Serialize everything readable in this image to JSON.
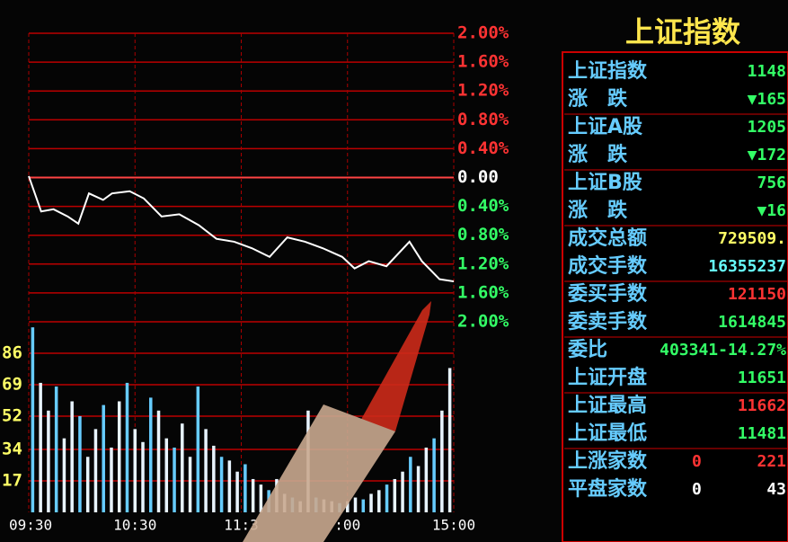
{
  "chart_data": {
    "type": "line",
    "xlim": [
      0,
      240
    ],
    "xticks": [
      {
        "value": 0,
        "label": "09:30"
      },
      {
        "value": 60,
        "label": "10:30"
      },
      {
        "value": 120,
        "label": "11:3"
      },
      {
        "value": 180,
        "label": ":00"
      },
      {
        "value": 240,
        "label": "15:00"
      }
    ],
    "ylim": [
      -2,
      2
    ],
    "yticks": [
      {
        "value": 2,
        "label": "2.00%"
      },
      {
        "value": 1.6,
        "label": "1.60%"
      },
      {
        "value": 1.2,
        "label": "1.20%"
      },
      {
        "value": 0.8,
        "label": "0.80%"
      },
      {
        "value": 0.4,
        "label": "0.40%"
      },
      {
        "value": 0,
        "label": "0.00"
      },
      {
        "value": -0.4,
        "label": "0.40%"
      },
      {
        "value": -0.8,
        "label": "0.80%"
      },
      {
        "value": -1.2,
        "label": "1.20%"
      },
      {
        "value": -1.6,
        "label": "1.60%"
      },
      {
        "value": -2,
        "label": "2.00%"
      }
    ],
    "grid": true,
    "series": [
      {
        "color": "#ffffff",
        "x": [
          0,
          7,
          14,
          22,
          28,
          34,
          42,
          47,
          57,
          65,
          75,
          85,
          96,
          106,
          116,
          126,
          136,
          146,
          156,
          166,
          177,
          184,
          192,
          202,
          215,
          222,
          232,
          240
        ],
        "values": [
          0.02,
          -0.47,
          -0.44,
          -0.54,
          -0.64,
          -0.22,
          -0.31,
          -0.22,
          -0.19,
          -0.29,
          -0.54,
          -0.51,
          -0.66,
          -0.85,
          -0.89,
          -0.98,
          -1.1,
          -0.83,
          -0.89,
          -0.98,
          -1.1,
          -1.26,
          -1.16,
          -1.23,
          -0.89,
          -1.16,
          -1.41,
          -1.44
        ]
      }
    ],
    "volume": {
      "color": "#e8f4ff",
      "ylim": [
        0,
        103
      ],
      "yticks": [
        17,
        34,
        52,
        69,
        86
      ],
      "values": [
        100,
        70,
        55,
        68,
        40,
        60,
        52,
        30,
        45,
        58,
        35,
        60,
        70,
        45,
        38,
        62,
        55,
        40,
        35,
        48,
        30,
        68,
        45,
        36,
        30,
        28,
        22,
        26,
        18,
        15,
        12,
        18,
        10,
        8,
        6,
        55,
        8,
        7,
        6,
        5,
        6,
        8,
        7,
        10,
        12,
        15,
        18,
        22,
        30,
        25,
        35,
        40,
        55,
        78
      ]
    }
  },
  "panel": {
    "title": "上证指数",
    "rows": [
      {
        "label": "上证指数",
        "values": [
          "1148"
        ],
        "color": "#33ff66"
      },
      {
        "label": "涨　跌",
        "values": [
          "▼165"
        ],
        "color": "#33ff66"
      },
      {
        "label": "上证A股",
        "values": [
          "1205"
        ],
        "color": "#33ff66"
      },
      {
        "label": "涨　跌",
        "values": [
          "▼172"
        ],
        "color": "#33ff66"
      },
      {
        "label": "上证B股",
        "values": [
          "756"
        ],
        "color": "#33ff66"
      },
      {
        "label": "涨　跌",
        "values": [
          "▼16"
        ],
        "color": "#33ff66"
      },
      {
        "label": "成交总额",
        "values": [
          "729509."
        ],
        "color": "#ffff66"
      },
      {
        "label": "成交手数",
        "values": [
          "16355237"
        ],
        "color": "#66ffff"
      },
      {
        "label": "委买手数",
        "values": [
          "121150"
        ],
        "color": "#ff3333"
      },
      {
        "label": "委卖手数",
        "values": [
          "1614845"
        ],
        "color": "#33ff66"
      },
      {
        "label": "委比",
        "values": [
          "403341-14.27%"
        ],
        "color": "#33ff66"
      },
      {
        "label": "上证开盘",
        "values": [
          "11651"
        ],
        "color": "#33ff66"
      },
      {
        "label": "上证最高",
        "values": [
          "11662"
        ],
        "color": "#ff3333"
      },
      {
        "label": "上证最低",
        "values": [
          "11481"
        ],
        "color": "#33ff66"
      },
      {
        "label": "上涨家数",
        "values": [
          "0",
          "221"
        ],
        "color": "#ff3333"
      },
      {
        "label": "平盘家数",
        "values": [
          "0",
          "43"
        ],
        "color": "#ffffff"
      }
    ]
  }
}
